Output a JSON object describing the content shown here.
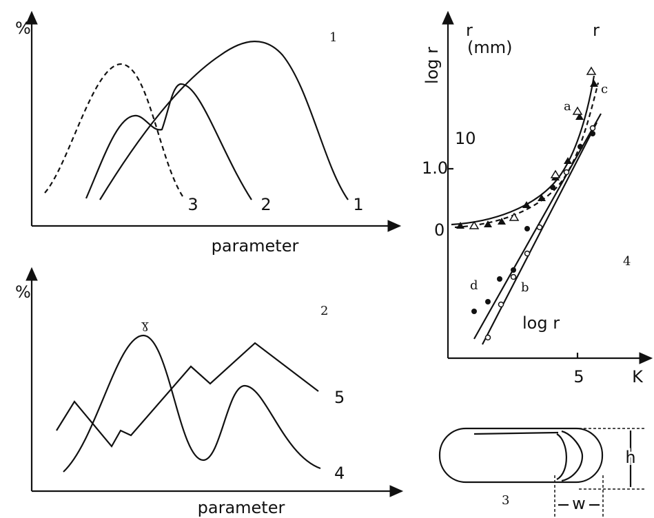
{
  "panels": [
    {
      "number": "1",
      "y_label": "%",
      "x_label": "parameter",
      "curve_labels": [
        "3",
        "2",
        "1"
      ]
    },
    {
      "number": "2",
      "y_label": "%",
      "x_label": "parameter",
      "peak_label": "ɣ",
      "curve_labels": [
        "5",
        "4"
      ]
    },
    {
      "number": "4",
      "y_label": "log r",
      "r_label": "r",
      "unit": "(mm)",
      "x_label": "K",
      "x_tick": "5",
      "left_labels": [
        "10",
        "1.0",
        "0"
      ],
      "curve_labels": [
        "r",
        "c",
        "a",
        "d",
        "b"
      ],
      "inner_label": "log r"
    },
    {
      "number": "3",
      "height_label": "h",
      "width_label": "w"
    }
  ]
}
